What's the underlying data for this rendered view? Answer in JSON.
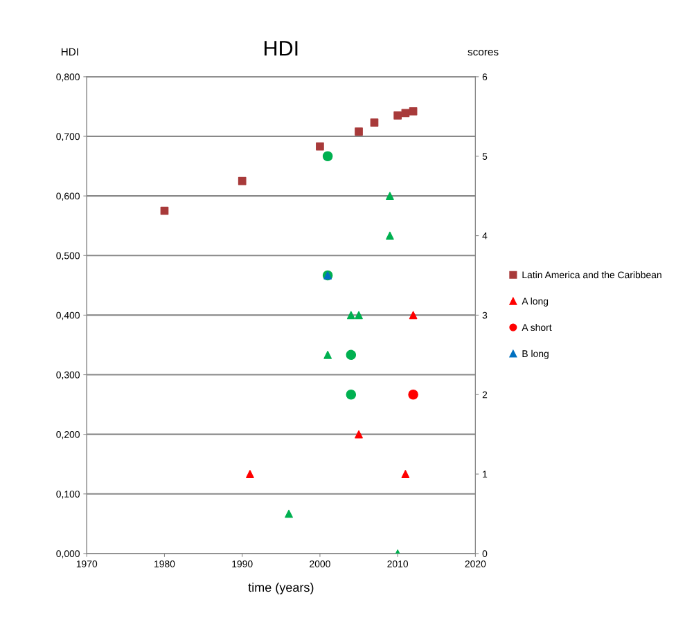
{
  "chart_data": {
    "type": "scatter",
    "title": "HDI",
    "xlabel": "time (years)",
    "ylabel": "HDI",
    "y2label": "scores",
    "xlim": [
      1970,
      2020
    ],
    "xticks": [
      1970,
      1980,
      1990,
      2000,
      2010,
      2020
    ],
    "ylim": [
      0,
      0.8
    ],
    "yticks": [
      {
        "value": 0,
        "label": "0,000"
      },
      {
        "value": 0.1,
        "label": "0,100"
      },
      {
        "value": 0.2,
        "label": "0,200"
      },
      {
        "value": 0.3,
        "label": "0,300"
      },
      {
        "value": 0.4,
        "label": "0,400"
      },
      {
        "value": 0.5,
        "label": "0,500"
      },
      {
        "value": 0.6,
        "label": "0,600"
      },
      {
        "value": 0.7,
        "label": "0,700"
      },
      {
        "value": 0.8,
        "label": "0,800"
      }
    ],
    "y2lim": [
      0,
      6
    ],
    "y2ticks": [
      0,
      1,
      2,
      3,
      4,
      5,
      6
    ],
    "grid": "y",
    "legend": "right",
    "series": [
      {
        "name": "Latin America and the Caribbean",
        "color": "#a83a3a",
        "marker": "square",
        "x": [
          1980,
          1990,
          2000,
          2005,
          2007,
          2010,
          2011,
          2012
        ],
        "values": [
          0.575,
          0.625,
          0.683,
          0.708,
          0.723,
          0.735,
          0.739,
          0.742
        ]
      },
      {
        "name": "A long",
        "color": "#ff0000",
        "marker": "triangle",
        "axis": "y2",
        "x": [
          1991,
          2005,
          2011,
          2012
        ],
        "values": [
          1,
          1.5,
          1,
          3
        ]
      },
      {
        "name": "A short",
        "color": "#ff0000",
        "marker": "circle",
        "axis": "y2",
        "x": [
          2012
        ],
        "values": [
          2
        ]
      },
      {
        "color": "#00b050",
        "marker": "circle",
        "axis": "y2",
        "x": [
          2001,
          2001,
          2004,
          2004
        ],
        "values": [
          5,
          3.5,
          2.5,
          2
        ]
      },
      {
        "color": "#00b050",
        "marker": "triangle",
        "axis": "y2",
        "x": [
          1996,
          2001,
          2004,
          2005,
          2009,
          2009,
          2010
        ],
        "values": [
          0.5,
          2.5,
          3,
          3,
          4,
          4.5,
          0
        ]
      },
      {
        "name": "B long",
        "color": "#0070c0",
        "marker": "triangle",
        "axis": "y2",
        "x": [
          2001
        ],
        "values": [
          3.5
        ]
      }
    ]
  }
}
